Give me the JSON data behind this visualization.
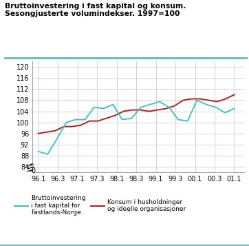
{
  "title_line1": "Bruttoinvestering i fast kapital og konsum.",
  "title_line2": "Sesongjusterte volumindekser. 1997=100",
  "title_color": "#000000",
  "title_bar_color": "#5BC8C8",
  "background_color": "#ffffff",
  "grid_color": "#cccccc",
  "ylim": [
    82,
    122
  ],
  "yticks": [
    84,
    88,
    92,
    96,
    100,
    104,
    108,
    112,
    116,
    120
  ],
  "xtick_labels": [
    "96.1",
    "96.3",
    "97.1",
    "97.3",
    "98.1",
    "98.3",
    "99.1",
    "99.3",
    "00.1",
    "00.3",
    "01.1"
  ],
  "investment_color": "#3DBFBF",
  "consumption_color": "#B22222",
  "investment_label": "Bruttoinvestering\ni fast kapital for\nFastlands-Norge.",
  "consumption_label": "Konsum i husholdninger\nog ideelle organisasjoner",
  "investment_values": [
    89.5,
    88.5,
    94.0,
    100.0,
    101.0,
    101.0,
    105.5,
    105.0,
    106.5,
    101.0,
    101.5,
    105.5,
    106.5,
    107.5,
    105.5,
    101.0,
    100.5,
    108.0,
    106.5,
    105.5,
    103.5,
    105.0
  ],
  "consumption_values": [
    96.0,
    96.5,
    97.0,
    98.5,
    98.5,
    99.0,
    100.5,
    100.5,
    101.5,
    102.5,
    104.0,
    104.5,
    104.5,
    104.0,
    104.5,
    105.0,
    106.0,
    108.0,
    108.5,
    108.5,
    108.0,
    107.5,
    108.5,
    110.0
  ],
  "n_investment": 22,
  "n_consumption": 24
}
